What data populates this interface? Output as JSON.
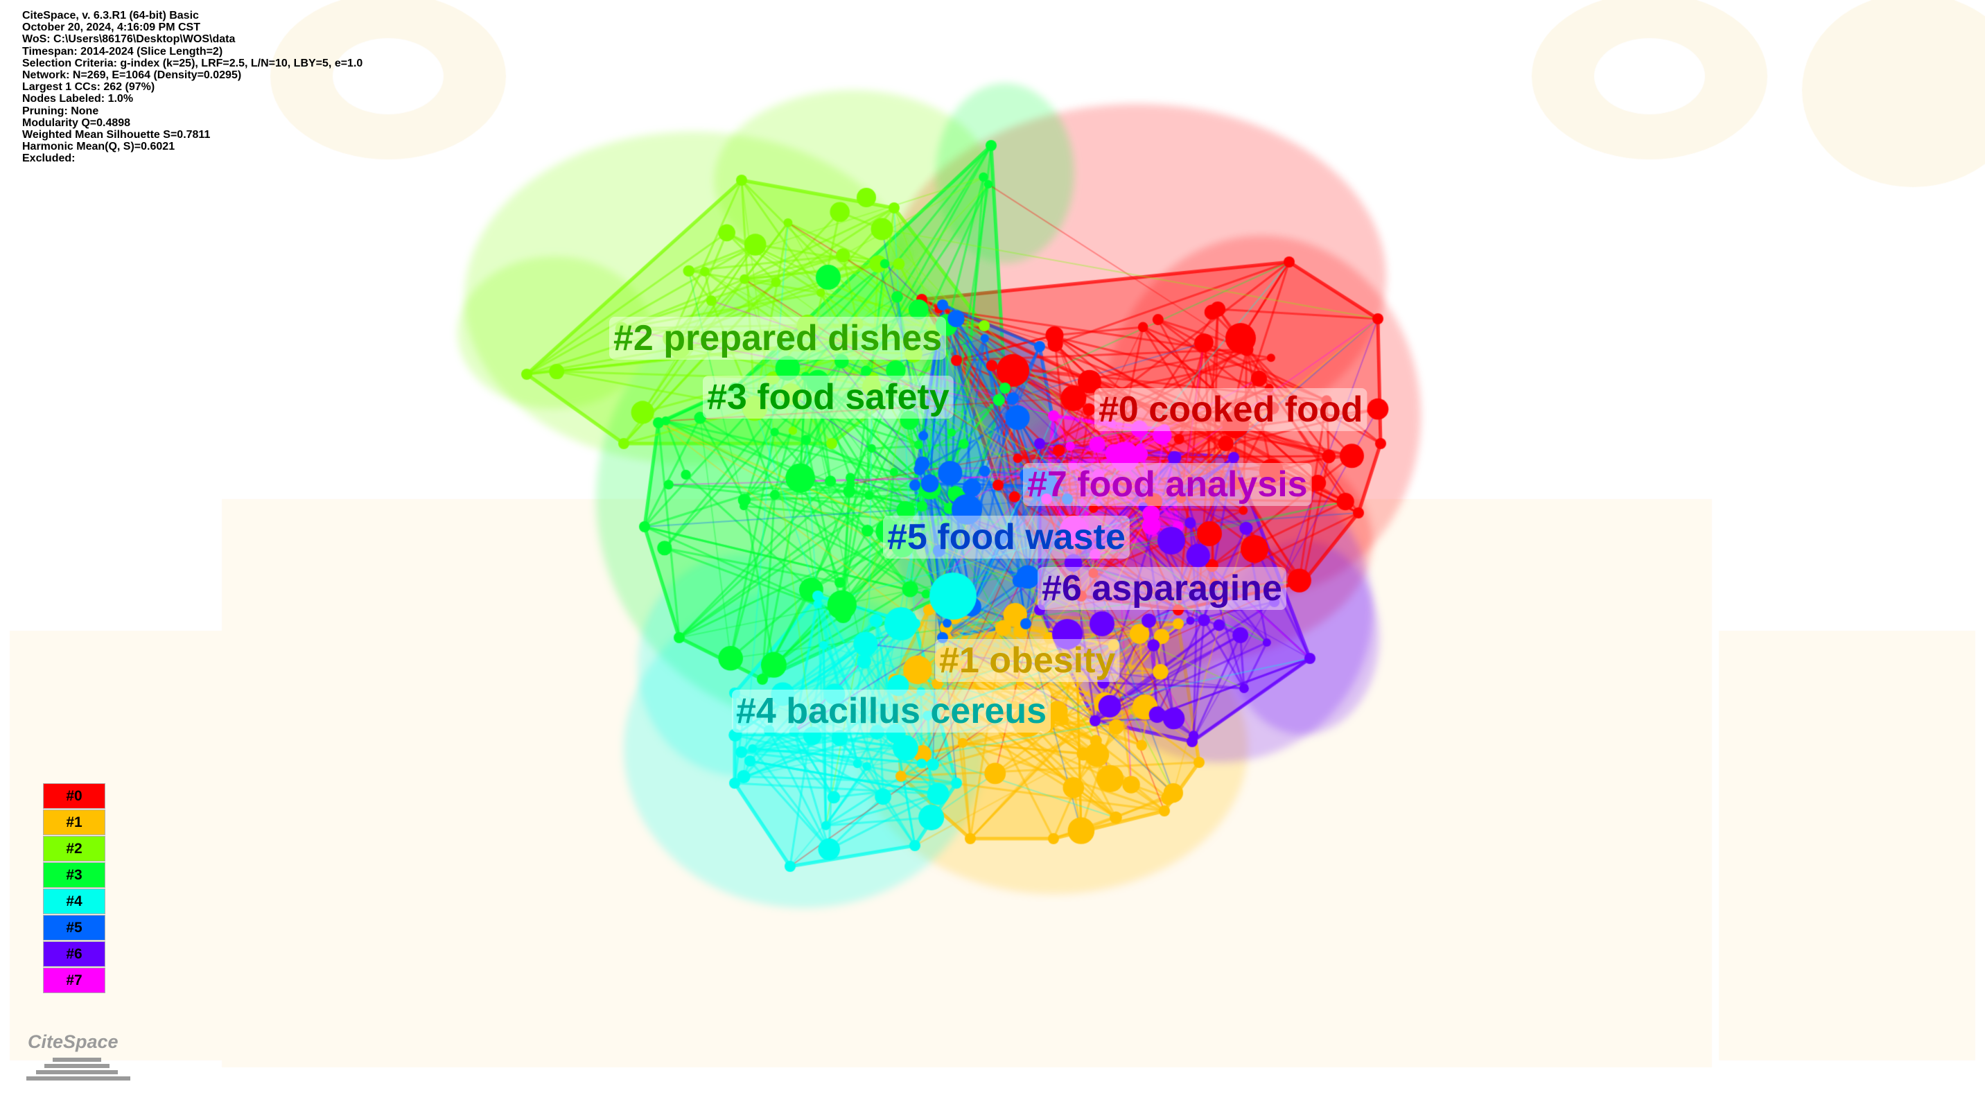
{
  "info_lines": [
    "CiteSpace, v. 6.3.R1 (64-bit) Basic",
    "October 20, 2024, 4:16:09 PM CST",
    "WoS: C:\\Users\\86176\\Desktop\\WOS\\data",
    "Timespan: 2014-2024 (Slice Length=2)",
    "Selection Criteria: g-index (k=25), LRF=2.5, L/N=10, LBY=5, e=1.0",
    "Network: N=269, E=1064 (Density=0.0295)",
    "Largest 1 CCs: 262 (97%)",
    "Nodes Labeled: 1.0%",
    "Pruning: None",
    "Modularity Q=0.4898",
    "Weighted Mean Silhouette S=0.7811",
    "Harmonic Mean(Q, S)=0.6021",
    "Excluded:"
  ],
  "clusters": [
    {
      "id": "#0",
      "label": "#0 cooked food",
      "color": "#ff0000",
      "label_color": "#cc0000"
    },
    {
      "id": "#1",
      "label": "#1 obesity",
      "color": "#ffc000",
      "label_color": "#c8a000"
    },
    {
      "id": "#2",
      "label": "#2 prepared dishes",
      "color": "#7fff00",
      "label_color": "#2fa800"
    },
    {
      "id": "#3",
      "label": "#3 food safety",
      "color": "#00ff33",
      "label_color": "#00a000"
    },
    {
      "id": "#4",
      "label": "#4 bacillus cereus",
      "color": "#00ffee",
      "label_color": "#00aaa0"
    },
    {
      "id": "#5",
      "label": "#5 food waste",
      "color": "#0066ff",
      "label_color": "#0040c8"
    },
    {
      "id": "#6",
      "label": "#6 asparagine",
      "color": "#6600ff",
      "label_color": "#4000b0"
    },
    {
      "id": "#7",
      "label": "#7 food analysis",
      "color": "#ff00ff",
      "label_color": "#b000c0"
    }
  ],
  "logo": {
    "text": "CiteSpace"
  }
}
